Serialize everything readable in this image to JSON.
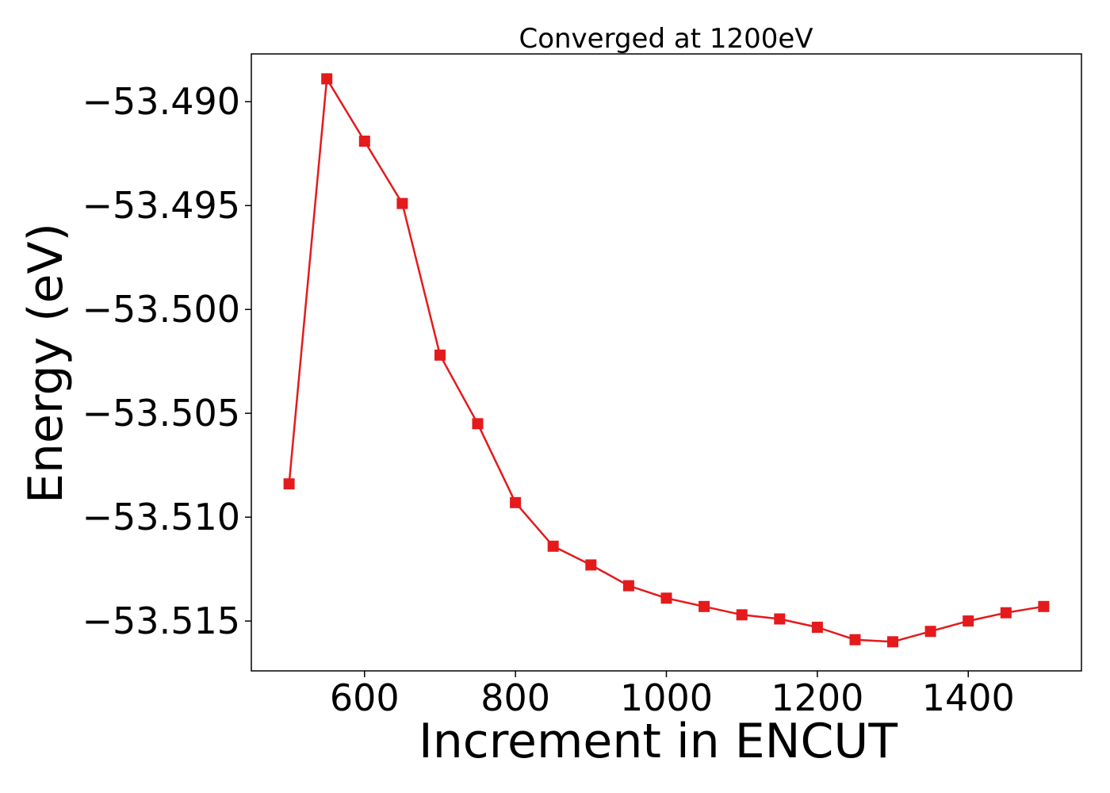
{
  "chart_data": {
    "type": "line",
    "title": "Converged at 1200eV",
    "xlabel": "Increment in ENCUT",
    "ylabel": "Energy (eV)",
    "xlim": [
      450,
      1550
    ],
    "ylim": [
      -53.5174,
      -53.4877
    ],
    "xticks": [
      600,
      800,
      1000,
      1200,
      1400
    ],
    "xtick_labels": [
      "600",
      "800",
      "1000",
      "1200",
      "1400"
    ],
    "yticks": [
      -53.49,
      -53.495,
      -53.5,
      -53.505,
      -53.51,
      -53.515
    ],
    "ytick_labels": [
      "−53.490",
      "−53.495",
      "−53.500",
      "−53.505",
      "−53.510",
      "−53.515"
    ],
    "grid": false,
    "marker": "square",
    "color": "#e41a1c",
    "series": [
      {
        "x": [
          500,
          550,
          600,
          650,
          700,
          750,
          800,
          850,
          900,
          950,
          1000,
          1050,
          1100,
          1150,
          1200,
          1250,
          1300,
          1350,
          1400,
          1450,
          1500
        ],
        "y": [
          -53.5084,
          -53.4889,
          -53.4919,
          -53.4949,
          -53.5022,
          -53.5055,
          -53.5093,
          -53.5114,
          -53.5123,
          -53.5133,
          -53.5139,
          -53.5143,
          -53.5147,
          -53.5149,
          -53.5153,
          -53.5159,
          -53.516,
          -53.5155,
          -53.515,
          -53.5146,
          -53.5143
        ]
      }
    ]
  }
}
